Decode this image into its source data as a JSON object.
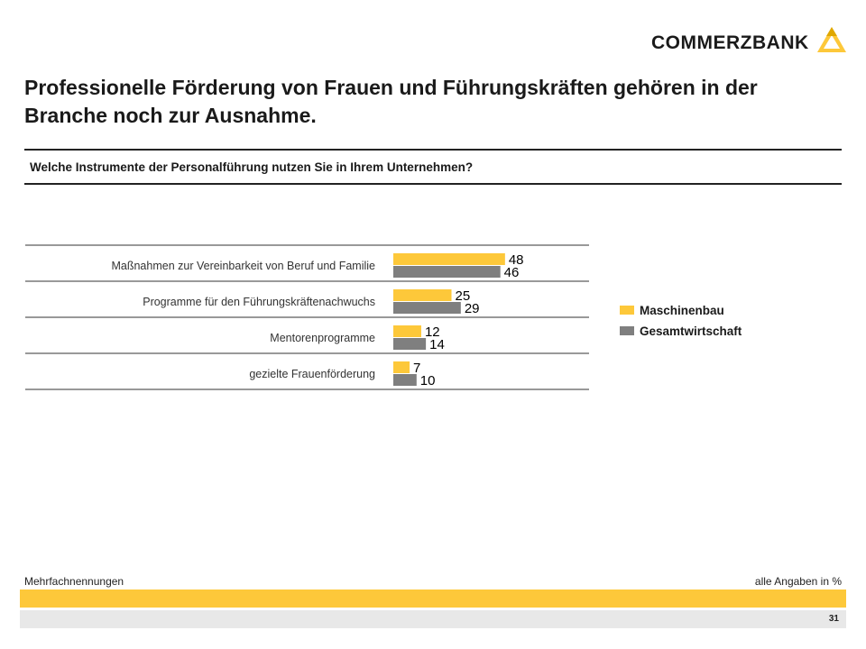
{
  "brand": {
    "name": "COMMERZBANK",
    "colors": {
      "yellow": "#fdc83a",
      "gray": "#7f7f7f"
    }
  },
  "title": "Professionelle Förderung von Frauen und Führungskräften gehören in der Branche noch zur Ausnahme.",
  "question": "Welche Instrumente der Personalführung nutzen Sie in Ihrem Unternehmen?",
  "chart_data": {
    "type": "bar",
    "orientation": "horizontal",
    "categories": [
      "Maßnahmen zur Vereinbarkeit von Beruf und Familie",
      "Programme für den Führungskräftenachwuchs",
      "Mentorenprogramme",
      "gezielte Frauenförderung"
    ],
    "series": [
      {
        "name": "Maschinenbau",
        "color": "#fdc83a",
        "values": [
          48,
          25,
          12,
          7
        ]
      },
      {
        "name": "Gesamtwirtschaft",
        "color": "#7f7f7f",
        "values": [
          46,
          29,
          14,
          10
        ]
      }
    ],
    "unit": "%",
    "grid": false,
    "legend": "right"
  },
  "footer": {
    "note": "Mehrfachnennungen",
    "unit_note": "alle  Angaben in %",
    "page": "31"
  }
}
